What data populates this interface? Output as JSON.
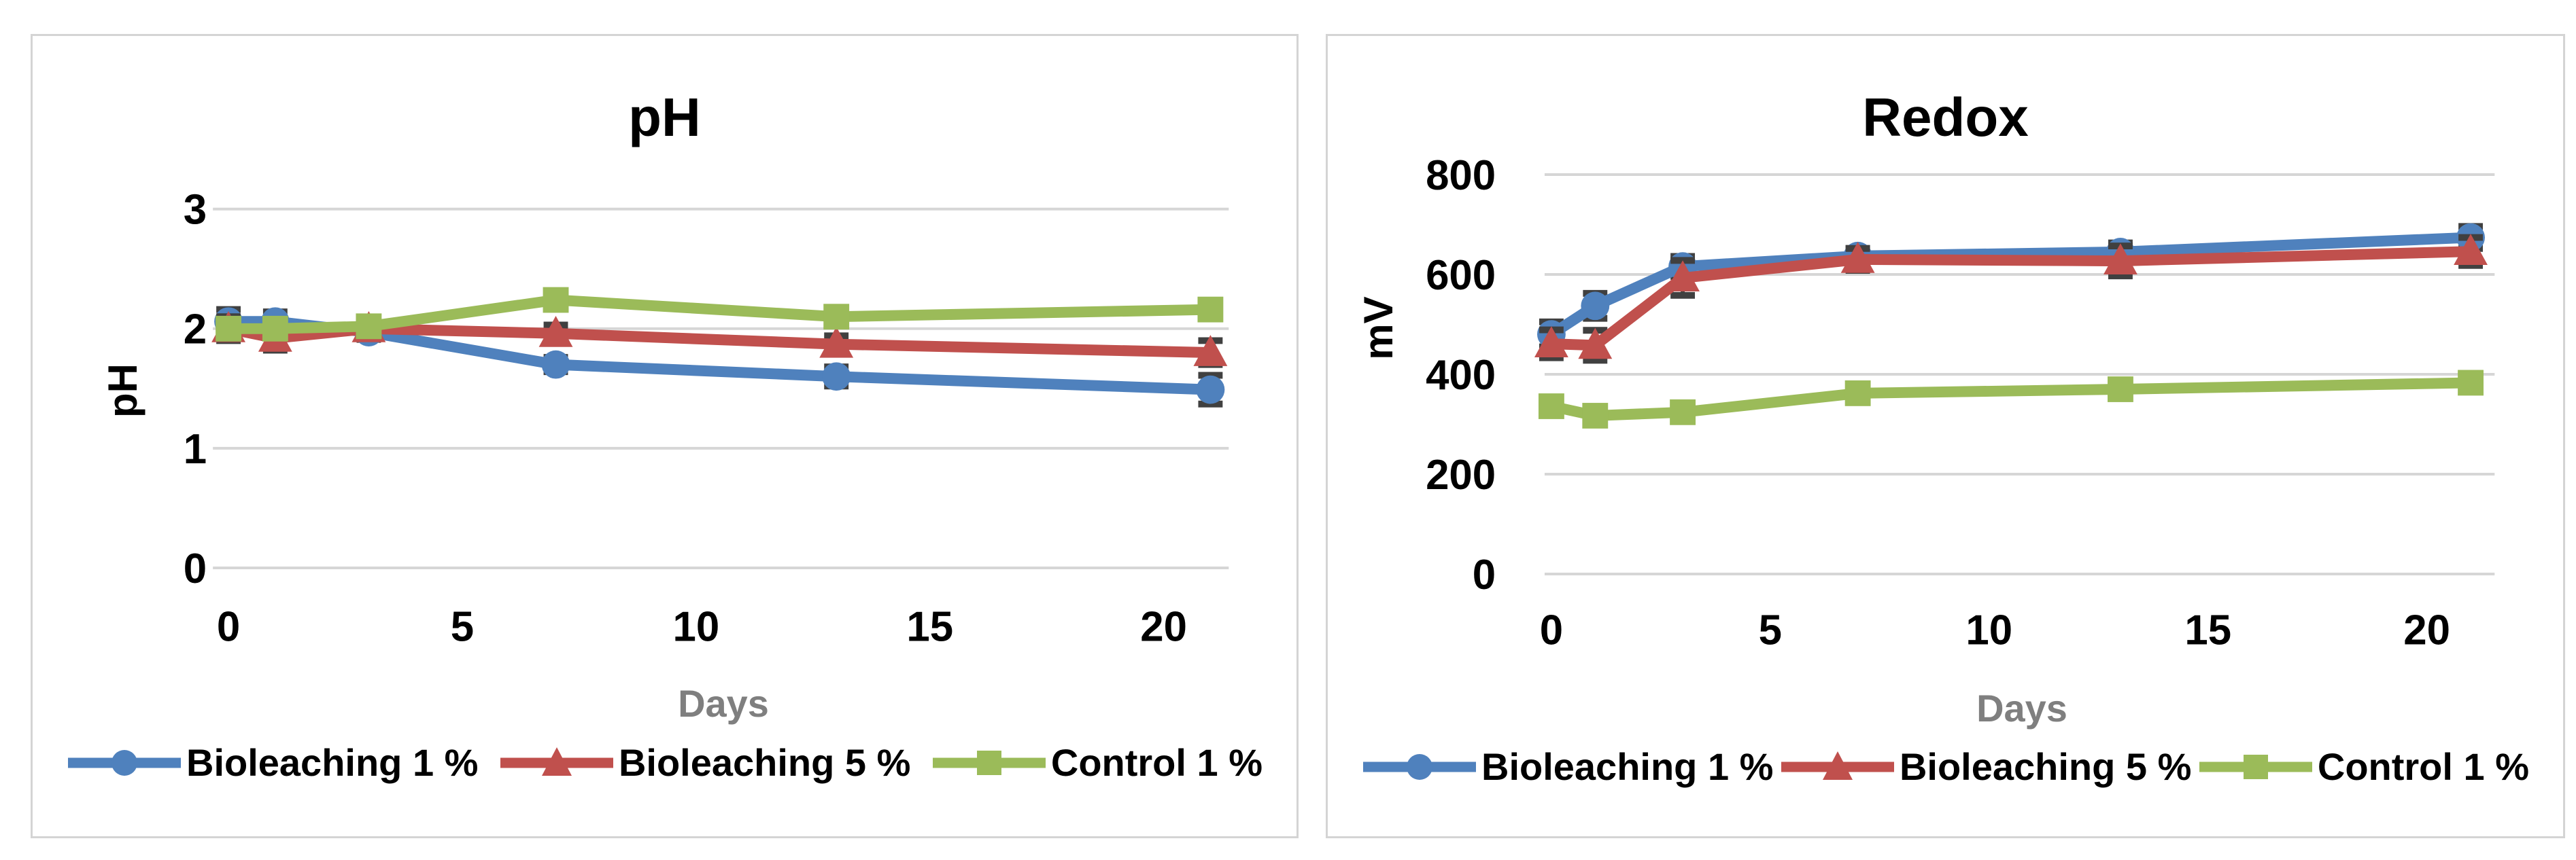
{
  "figure": {
    "panel_count": 2,
    "colors": {
      "series_blue": "#4F81BD",
      "series_red": "#C0504D",
      "series_green": "#9BBB59",
      "gridline": "#d6d6d6",
      "error_bar": "#404040",
      "axis_text": "#000000",
      "axis_title_gray": "#7f7f7f",
      "panel_border": "#d4d4d4",
      "background": "#ffffff"
    }
  },
  "chart_data": [
    {
      "type": "line",
      "title": "pH",
      "xlabel": "Days",
      "ylabel": "pH",
      "x": [
        0,
        1,
        3,
        7,
        13,
        21
      ],
      "xticks": [
        0,
        5,
        10,
        15,
        20
      ],
      "xlim": [
        0,
        21.5
      ],
      "yticks": [
        0,
        1,
        2,
        3
      ],
      "ylim": [
        0,
        3
      ],
      "grid": true,
      "error_bars": true,
      "legend_position": "bottom",
      "series": [
        {
          "name": "Bioleaching 1 %",
          "color": "#4F81BD",
          "marker": "circle",
          "values": [
            2.06,
            2.06,
            1.97,
            1.7,
            1.6,
            1.49
          ],
          "error": [
            0.1,
            0.08,
            0.06,
            0.06,
            0.08,
            0.12
          ]
        },
        {
          "name": "Bioleaching 5 %",
          "color": "#C0504D",
          "marker": "triangle",
          "values": [
            2.0,
            1.92,
            2.0,
            1.96,
            1.87,
            1.8
          ],
          "error": [
            0.1,
            0.1,
            0.05,
            0.07,
            0.07,
            0.1
          ]
        },
        {
          "name": "Control 1 %",
          "color": "#9BBB59",
          "marker": "square",
          "values": [
            2.0,
            2.0,
            2.02,
            2.24,
            2.1,
            2.16
          ],
          "error": [
            0.08,
            0.06,
            0.05,
            0.06,
            0.07,
            0.05
          ]
        }
      ]
    },
    {
      "type": "line",
      "title": "Redox",
      "xlabel": "Days",
      "ylabel": "mV",
      "x": [
        0,
        1,
        3,
        7,
        13,
        21
      ],
      "xticks": [
        0,
        5,
        10,
        15,
        20
      ],
      "xlim": [
        0,
        21.5
      ],
      "yticks": [
        0,
        200,
        400,
        600,
        800
      ],
      "ylim": [
        0,
        800
      ],
      "grid": true,
      "error_bars": true,
      "legend_position": "bottom",
      "series": [
        {
          "name": "Bioleaching 1 %",
          "color": "#4F81BD",
          "marker": "circle",
          "values": [
            480,
            537,
            616,
            637,
            645,
            674
          ],
          "error": [
            25,
            25,
            20,
            15,
            18,
            22
          ]
        },
        {
          "name": "Bioleaching 5 %",
          "color": "#C0504D",
          "marker": "triangle",
          "values": [
            461,
            458,
            593,
            630,
            627,
            646
          ],
          "error": [
            28,
            30,
            35,
            22,
            30,
            28
          ]
        },
        {
          "name": "Control 1 %",
          "color": "#9BBB59",
          "marker": "square",
          "values": [
            336,
            317,
            324,
            362,
            370,
            383
          ],
          "error": [
            12,
            15,
            10,
            8,
            10,
            14
          ]
        }
      ]
    }
  ]
}
